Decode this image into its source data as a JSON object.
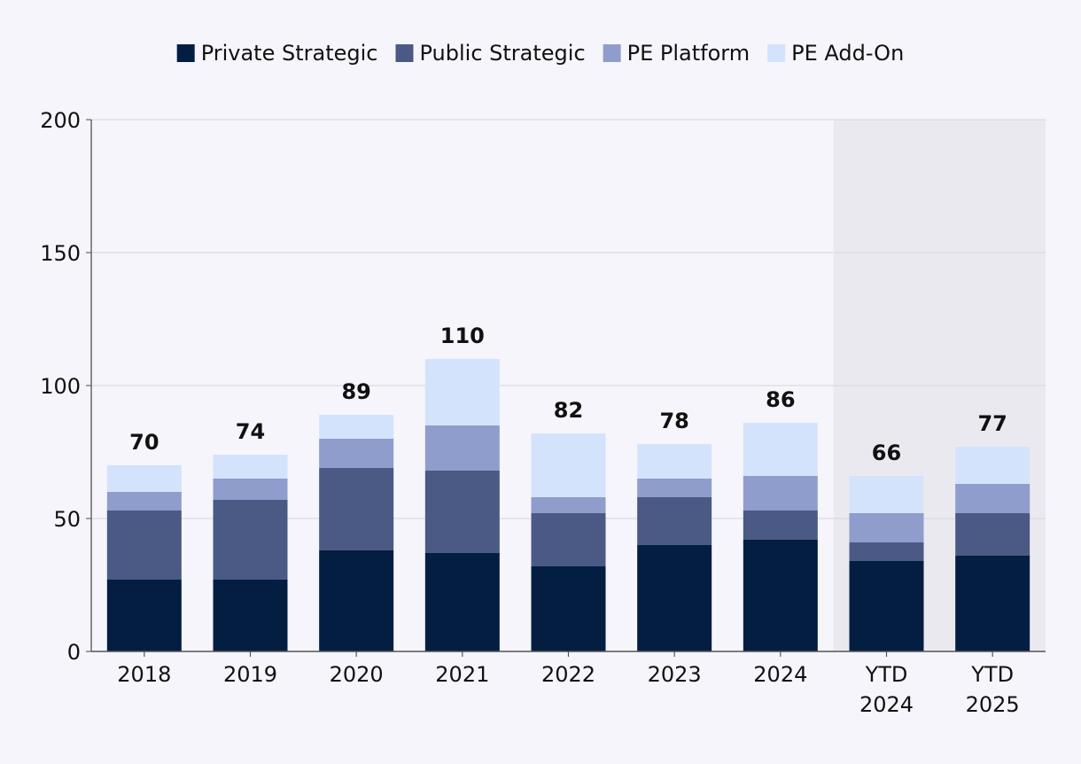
{
  "chart_data": {
    "type": "bar",
    "stacked": true,
    "categories": [
      "2018",
      "2019",
      "2020",
      "2021",
      "2022",
      "2023",
      "2024",
      "YTD 2024",
      "YTD 2025"
    ],
    "category_lines": [
      [
        "2018"
      ],
      [
        "2019"
      ],
      [
        "2020"
      ],
      [
        "2021"
      ],
      [
        "2022"
      ],
      [
        "2023"
      ],
      [
        "2024"
      ],
      [
        "YTD",
        "2024"
      ],
      [
        "YTD",
        "2025"
      ]
    ],
    "series": [
      {
        "name": "Private Strategic",
        "color": "#041e42",
        "values": [
          27,
          27,
          38,
          37,
          32,
          40,
          42,
          34,
          36
        ]
      },
      {
        "name": "Public Strategic",
        "color": "#4a5a85",
        "values": [
          26,
          30,
          31,
          31,
          20,
          18,
          11,
          7,
          16
        ]
      },
      {
        "name": "PE Platform",
        "color": "#8e9dcc",
        "values": [
          7,
          8,
          11,
          17,
          6,
          7,
          13,
          11,
          11
        ]
      },
      {
        "name": "PE Add-On",
        "color": "#d4e3fc",
        "values": [
          10,
          9,
          9,
          25,
          24,
          13,
          20,
          14,
          14
        ]
      }
    ],
    "totals": [
      "70",
      "74",
      "89",
      "110",
      "82",
      "78",
      "86",
      "66",
      "77"
    ],
    "y_ticks": [
      "0",
      "50",
      "100",
      "150",
      "200"
    ],
    "ylim": [
      0,
      200
    ],
    "highlight_categories": [
      "YTD 2024",
      "YTD 2025"
    ],
    "highlight_color": "#ebe9f0",
    "grid": true,
    "legend_position": "top-center",
    "title": "",
    "xlabel": "",
    "ylabel": ""
  }
}
